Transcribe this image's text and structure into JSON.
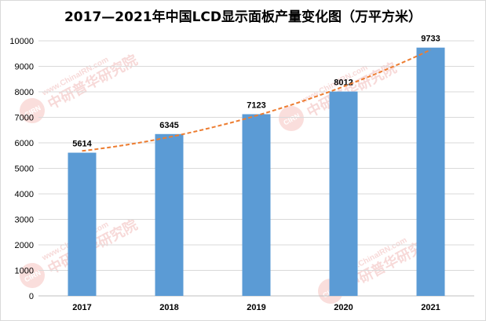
{
  "chart_data": {
    "type": "bar",
    "title": "2017—2021年中国LCD显示面板产量变化图（万平方米）",
    "categories": [
      "2017",
      "2018",
      "2019",
      "2020",
      "2021"
    ],
    "values": [
      5614,
      6345,
      7123,
      8012,
      9733
    ],
    "ylim": [
      0,
      10000
    ],
    "yticks": [
      0,
      1000,
      2000,
      3000,
      4000,
      5000,
      6000,
      7000,
      8000,
      9000,
      10000
    ],
    "grid": true,
    "legend": "none",
    "trendline": {
      "style": "dashed",
      "color": "#ed7d31"
    },
    "bar_color": "#5b9bd5",
    "watermark": {
      "brand": "中研普华研究院",
      "site": "www.ChinaIRN.com",
      "logo": "CIRN"
    }
  }
}
